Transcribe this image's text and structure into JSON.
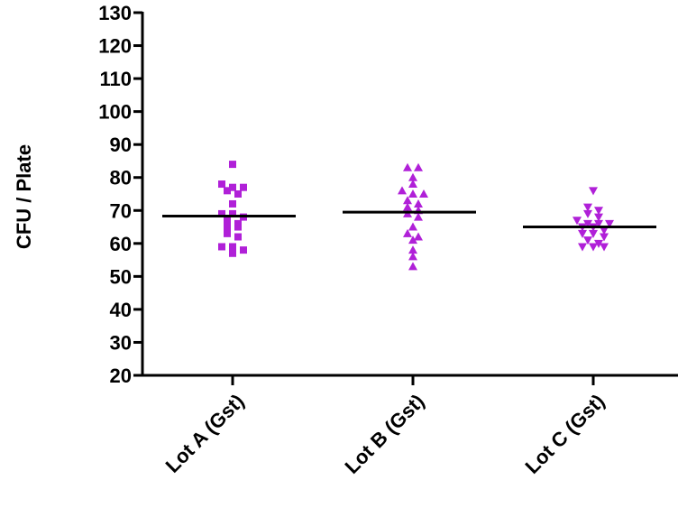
{
  "chart_data": {
    "type": "scatter",
    "ylabel": "CFU / Plate",
    "xlabel": "",
    "ylim": [
      20,
      130
    ],
    "yticks": [
      20,
      30,
      40,
      50,
      60,
      70,
      80,
      90,
      100,
      110,
      120,
      130
    ],
    "categories": [
      "Lot A (Gst)",
      "Lot B (Gst)",
      "Lot C (Gst)"
    ],
    "series": [
      {
        "category": "Lot A (Gst)",
        "marker": "square",
        "color": "#b020d8",
        "mean": 68.3,
        "values": [
          84,
          78,
          77,
          77,
          76,
          75,
          72,
          69,
          69,
          68,
          67,
          66,
          65,
          65,
          63,
          62,
          59,
          59,
          58,
          57
        ]
      },
      {
        "category": "Lot B (Gst)",
        "marker": "triangle-up",
        "color": "#b020d8",
        "mean": 69.5,
        "values": [
          83,
          83,
          80,
          78,
          76,
          75,
          75,
          73,
          72,
          71,
          70,
          69,
          68,
          65,
          63,
          62,
          61,
          58,
          56,
          53
        ]
      },
      {
        "category": "Lot C (Gst)",
        "marker": "triangle-down",
        "color": "#b020d8",
        "mean": 65,
        "values": [
          76,
          71,
          70,
          69,
          68,
          67,
          66,
          66,
          66,
          65,
          65,
          64,
          63,
          63,
          62,
          61,
          60,
          59,
          59,
          59
        ]
      }
    ]
  }
}
